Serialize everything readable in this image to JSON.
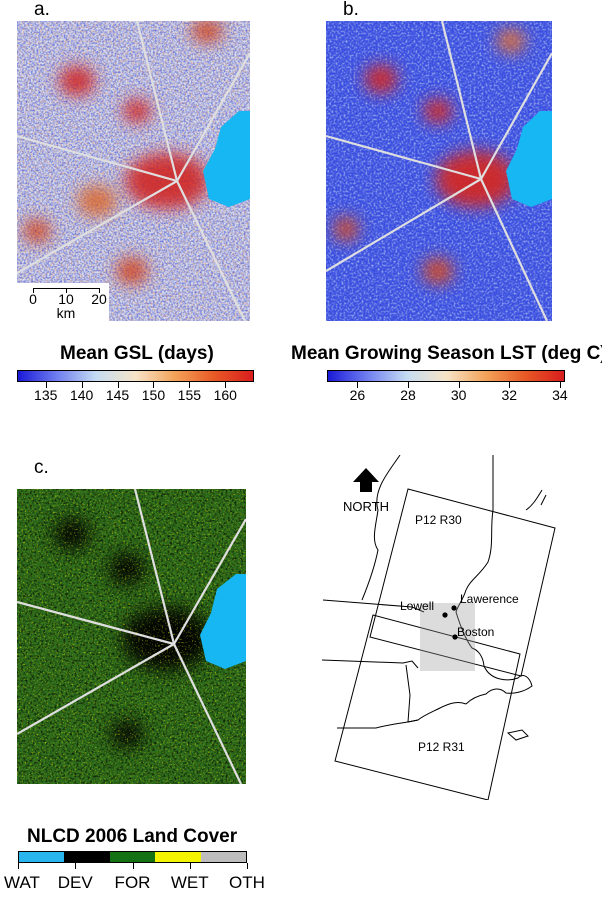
{
  "panels": {
    "a": {
      "label": "a."
    },
    "b": {
      "label": "b."
    },
    "c": {
      "label": "c."
    }
  },
  "scale_bar": {
    "ticks": [
      "0",
      "10",
      "20"
    ],
    "unit": "km"
  },
  "colorbar_gsl": {
    "title": "Mean GSL (days)",
    "colors": [
      "#1a1ad6",
      "#6f7ff0",
      "#c5dcf2",
      "#f6e4c8",
      "#f3a35a",
      "#e85a26",
      "#d81e1e"
    ],
    "range": [
      131,
      164
    ],
    "ticks": [
      135,
      140,
      145,
      150,
      155,
      160
    ],
    "tick_labels": [
      "135",
      "140",
      "145",
      "150",
      "155",
      "160"
    ]
  },
  "colorbar_lst": {
    "title": "Mean Growing Season LST (deg C)",
    "colors": [
      "#1a1ad6",
      "#6f7ff0",
      "#c5dcf2",
      "#f6e4c8",
      "#f3a35a",
      "#e85a26",
      "#d81e1e"
    ],
    "range": [
      24.8,
      34.2
    ],
    "ticks": [
      26,
      28,
      30,
      32,
      34
    ],
    "tick_labels": [
      "26",
      "28",
      "30",
      "32",
      "34"
    ]
  },
  "landcover": {
    "title": "NLCD 2006 Land Cover",
    "classes": [
      {
        "code": "WAT",
        "color": "#29b6ee"
      },
      {
        "code": "DEV",
        "color": "#000000"
      },
      {
        "code": "FOR",
        "color": "#157214"
      },
      {
        "code": "WET",
        "color": "#f4f400"
      },
      {
        "code": "OTH",
        "color": "#bdbdbd"
      }
    ]
  },
  "locator": {
    "north": "NORTH",
    "scene_top": "P12 R30",
    "scene_bottom": "P12 R31",
    "cities": [
      "Lowell",
      "Lawerence",
      "Boston"
    ]
  }
}
